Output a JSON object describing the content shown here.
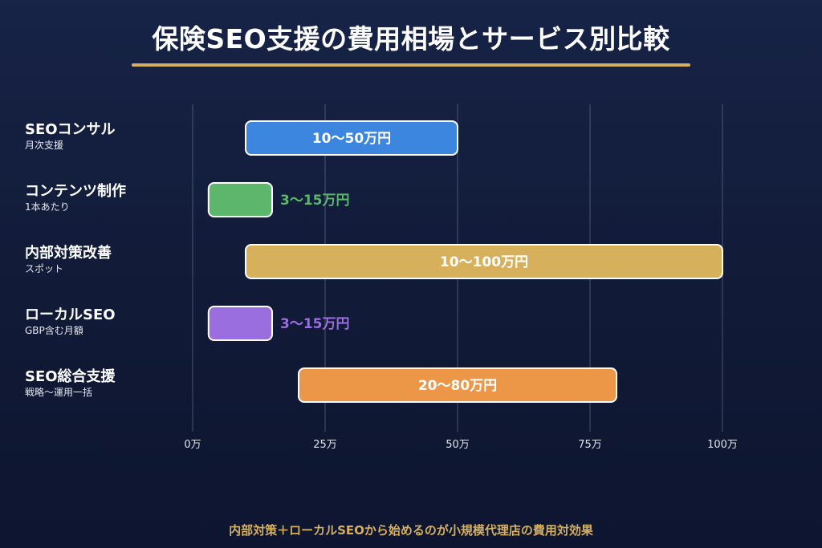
{
  "page": {
    "title": "保険SEO支援の費用相場とサービス別比較",
    "footer": "内部対策＋ローカルSEOから始めるのが小規模代理店の費用対効果"
  },
  "chart_data": {
    "type": "bar",
    "orientation": "horizontal",
    "bar_style": "range",
    "grid": true,
    "x_axis": {
      "min": 0,
      "max": 100,
      "ticks": [
        0,
        25,
        50,
        75,
        100
      ],
      "tick_labels": [
        "0万",
        "25万",
        "50万",
        "75万",
        "100万"
      ]
    },
    "rows": [
      {
        "name": "SEOコンサル",
        "sub": "月次支援",
        "low": 10,
        "high": 50,
        "label": "10〜50万円",
        "color": "#3d86e0",
        "label_inside": true
      },
      {
        "name": "コンテンツ制作",
        "sub": "1本あたり",
        "low": 3,
        "high": 15,
        "label": "3〜15万円",
        "color": "#5cb76d",
        "label_inside": false
      },
      {
        "name": "内部対策改善",
        "sub": "スポット",
        "low": 10,
        "high": 100,
        "label": "10〜100万円",
        "color": "#d7b05c",
        "label_inside": true
      },
      {
        "name": "ローカルSEO",
        "sub": "GBP含む月額",
        "low": 3,
        "high": 15,
        "label": "3〜15万円",
        "color": "#9b6ee0",
        "label_inside": false
      },
      {
        "name": "SEO総合支援",
        "sub": "戦略〜運用一括",
        "low": 20,
        "high": 80,
        "label": "20〜80万円",
        "color": "#ec9748",
        "label_inside": true
      }
    ]
  }
}
